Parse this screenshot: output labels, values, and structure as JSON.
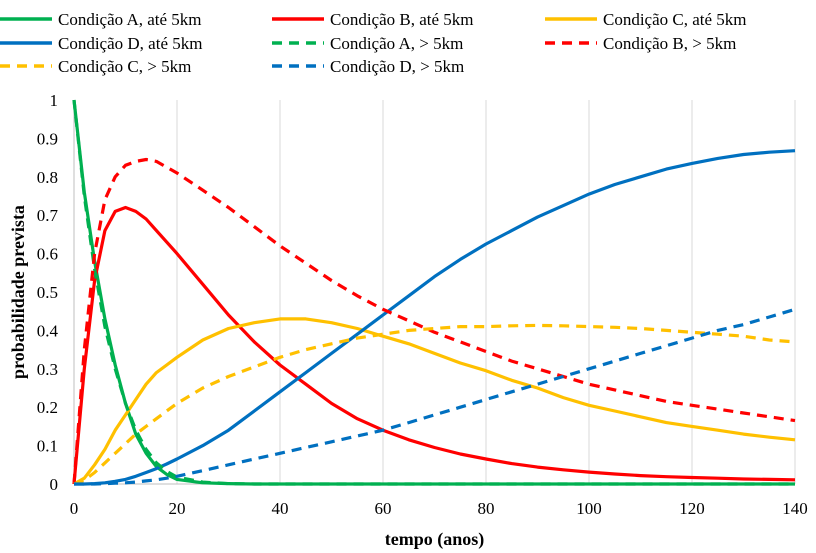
{
  "chart_data": {
    "type": "line",
    "title": "",
    "xlabel": "tempo (anos)",
    "ylabel": "probabilidade prevista",
    "xlim": [
      0,
      140
    ],
    "ylim": [
      0,
      1
    ],
    "x_ticks": [
      0,
      20,
      40,
      60,
      80,
      100,
      120,
      140
    ],
    "y_ticks": [
      0,
      0.1,
      0.2,
      0.3,
      0.4,
      0.5,
      0.6,
      0.7,
      0.8,
      0.9,
      1
    ],
    "x_tick_labels": [
      "0",
      "20",
      "40",
      "60",
      "80",
      "100",
      "120",
      "140"
    ],
    "y_tick_labels": [
      "0",
      "0.1",
      "0.2",
      "0.3",
      "0.4",
      "0.5",
      "0.6",
      "0.7",
      "0.8",
      "0.9",
      "1"
    ],
    "grid": "vertical",
    "legend_position": "top",
    "x": [
      0,
      2,
      4,
      6,
      8,
      10,
      12,
      14,
      16,
      18,
      20,
      25,
      30,
      35,
      40,
      45,
      50,
      55,
      60,
      65,
      70,
      75,
      80,
      85,
      90,
      95,
      100,
      105,
      110,
      115,
      120,
      125,
      130,
      135,
      140
    ],
    "series": [
      {
        "name": "Condição A, até 5km",
        "color": "#00B050",
        "dash": "solid",
        "values": [
          1,
          0.76,
          0.58,
          0.43,
          0.31,
          0.21,
          0.13,
          0.08,
          0.045,
          0.025,
          0.012,
          0.003,
          0.001,
          0,
          0,
          0,
          0,
          0,
          0,
          0,
          0,
          0,
          0,
          0,
          0,
          0,
          0,
          0,
          0,
          0,
          0,
          0,
          0,
          0,
          0
        ]
      },
      {
        "name": "Condição B, até 5km",
        "color": "#FF0000",
        "dash": "solid",
        "values": [
          0,
          0.3,
          0.53,
          0.66,
          0.71,
          0.72,
          0.71,
          0.69,
          0.66,
          0.63,
          0.6,
          0.52,
          0.44,
          0.37,
          0.31,
          0.26,
          0.21,
          0.17,
          0.14,
          0.115,
          0.095,
          0.078,
          0.065,
          0.053,
          0.044,
          0.037,
          0.031,
          0.026,
          0.022,
          0.019,
          0.017,
          0.015,
          0.013,
          0.012,
          0.011
        ]
      },
      {
        "name": "Condição C, até 5km",
        "color": "#FFC000",
        "dash": "solid",
        "values": [
          0,
          0.015,
          0.05,
          0.09,
          0.14,
          0.18,
          0.22,
          0.26,
          0.29,
          0.31,
          0.33,
          0.375,
          0.405,
          0.42,
          0.43,
          0.43,
          0.42,
          0.405,
          0.385,
          0.365,
          0.34,
          0.315,
          0.295,
          0.27,
          0.25,
          0.225,
          0.205,
          0.19,
          0.175,
          0.16,
          0.15,
          0.14,
          0.13,
          0.122,
          0.115
        ]
      },
      {
        "name": "Condição D, até 5km",
        "color": "#0070C0",
        "dash": "solid",
        "values": [
          0,
          0,
          0.001,
          0.003,
          0.007,
          0.012,
          0.02,
          0.03,
          0.04,
          0.052,
          0.065,
          0.1,
          0.14,
          0.19,
          0.24,
          0.29,
          0.34,
          0.39,
          0.44,
          0.49,
          0.54,
          0.585,
          0.625,
          0.66,
          0.695,
          0.725,
          0.755,
          0.78,
          0.8,
          0.82,
          0.835,
          0.848,
          0.858,
          0.864,
          0.868
        ]
      },
      {
        "name": "Condição A, > 5km",
        "color": "#00B050",
        "dash": "dashed",
        "values": [
          1,
          0.75,
          0.56,
          0.41,
          0.3,
          0.21,
          0.14,
          0.09,
          0.055,
          0.033,
          0.018,
          0.005,
          0.001,
          0,
          0,
          0,
          0,
          0,
          0,
          0,
          0,
          0,
          0,
          0,
          0,
          0,
          0,
          0,
          0,
          0,
          0,
          0,
          0,
          0,
          0
        ]
      },
      {
        "name": "Condição B, > 5km",
        "color": "#FF0000",
        "dash": "dashed",
        "values": [
          0,
          0.35,
          0.6,
          0.74,
          0.8,
          0.83,
          0.84,
          0.845,
          0.84,
          0.825,
          0.81,
          0.765,
          0.72,
          0.67,
          0.62,
          0.575,
          0.53,
          0.49,
          0.455,
          0.425,
          0.395,
          0.37,
          0.345,
          0.32,
          0.3,
          0.28,
          0.26,
          0.245,
          0.23,
          0.215,
          0.205,
          0.195,
          0.185,
          0.175,
          0.165
        ]
      },
      {
        "name": "Condição C, > 5km",
        "color": "#FFC000",
        "dash": "dashed",
        "values": [
          0,
          0.01,
          0.03,
          0.055,
          0.08,
          0.105,
          0.13,
          0.15,
          0.17,
          0.19,
          0.21,
          0.25,
          0.28,
          0.305,
          0.33,
          0.35,
          0.365,
          0.38,
          0.39,
          0.4,
          0.405,
          0.41,
          0.41,
          0.412,
          0.413,
          0.412,
          0.41,
          0.408,
          0.405,
          0.4,
          0.395,
          0.39,
          0.385,
          0.375,
          0.37
        ]
      },
      {
        "name": "Condição D, > 5km",
        "color": "#0070C0",
        "dash": "dashed",
        "values": [
          0,
          0,
          0,
          0.001,
          0.002,
          0.003,
          0.005,
          0.008,
          0.011,
          0.015,
          0.02,
          0.035,
          0.05,
          0.065,
          0.08,
          0.095,
          0.11,
          0.125,
          0.14,
          0.16,
          0.18,
          0.2,
          0.22,
          0.24,
          0.26,
          0.28,
          0.3,
          0.32,
          0.34,
          0.36,
          0.38,
          0.4,
          0.415,
          0.435,
          0.455
        ]
      }
    ]
  }
}
